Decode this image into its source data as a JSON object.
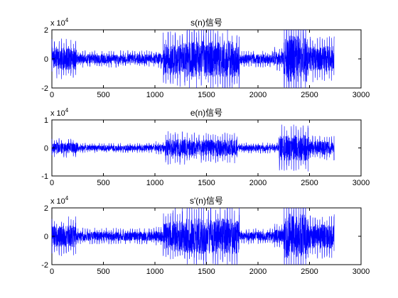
{
  "chart_data": [
    {
      "type": "line",
      "title": "s(n)信号",
      "exponent": {
        "base": "x 10",
        "power": "4"
      },
      "xlim": [
        0,
        3000
      ],
      "ylim": [
        -2,
        2
      ],
      "xticks": [
        0,
        500,
        1000,
        1500,
        2000,
        2500,
        3000
      ],
      "yticks": [
        -2,
        0,
        2
      ],
      "grid": false,
      "color": "#0000ff",
      "n_samples": 2740,
      "bursts": [
        {
          "from": 0,
          "to": 240,
          "peak": 0.7
        },
        {
          "from": 240,
          "to": 1000,
          "peak": 0.3
        },
        {
          "from": 1000,
          "to": 1080,
          "peak": 0.35
        },
        {
          "from": 1080,
          "to": 1300,
          "peak": 1.0
        },
        {
          "from": 1300,
          "to": 1820,
          "peak": 1.15
        },
        {
          "from": 1820,
          "to": 2150,
          "peak": 0.3
        },
        {
          "from": 2150,
          "to": 2250,
          "peak": 0.45
        },
        {
          "from": 2250,
          "to": 2480,
          "peak": 1.45
        },
        {
          "from": 2480,
          "to": 2740,
          "peak": 0.8
        }
      ]
    },
    {
      "type": "line",
      "title": "e(n)信号",
      "exponent": {
        "base": "x 10",
        "power": "4"
      },
      "xlim": [
        0,
        3000
      ],
      "ylim": [
        -1,
        1
      ],
      "xticks": [
        0,
        500,
        1000,
        1500,
        2000,
        2500,
        3000
      ],
      "yticks": [
        -1,
        0,
        1
      ],
      "grid": false,
      "color": "#0000ff",
      "n_samples": 2740,
      "bursts": [
        {
          "from": 0,
          "to": 250,
          "peak": 0.35
        },
        {
          "from": 250,
          "to": 1000,
          "peak": 0.18
        },
        {
          "from": 1000,
          "to": 1100,
          "peak": 0.25
        },
        {
          "from": 1100,
          "to": 1300,
          "peak": 0.6
        },
        {
          "from": 1300,
          "to": 1800,
          "peak": 0.55
        },
        {
          "from": 1800,
          "to": 2200,
          "peak": 0.2
        },
        {
          "from": 2200,
          "to": 2500,
          "peak": 0.85
        },
        {
          "from": 2500,
          "to": 2740,
          "peak": 0.45
        }
      ]
    },
    {
      "type": "line",
      "title": "s'(n)信号",
      "exponent": {
        "base": "x 10",
        "power": "4"
      },
      "xlim": [
        0,
        3000
      ],
      "ylim": [
        -2,
        2
      ],
      "xticks": [
        0,
        500,
        1000,
        1500,
        2000,
        2500,
        3000
      ],
      "yticks": [
        -2,
        0,
        2
      ],
      "grid": false,
      "color": "#0000ff",
      "n_samples": 2740,
      "bursts": [
        {
          "from": 0,
          "to": 240,
          "peak": 0.7
        },
        {
          "from": 240,
          "to": 1000,
          "peak": 0.3
        },
        {
          "from": 1000,
          "to": 1080,
          "peak": 0.35
        },
        {
          "from": 1080,
          "to": 1300,
          "peak": 1.0
        },
        {
          "from": 1300,
          "to": 1820,
          "peak": 1.15
        },
        {
          "from": 1820,
          "to": 2150,
          "peak": 0.3
        },
        {
          "from": 2150,
          "to": 2250,
          "peak": 0.45
        },
        {
          "from": 2250,
          "to": 2480,
          "peak": 1.45
        },
        {
          "from": 2480,
          "to": 2740,
          "peak": 0.8
        }
      ]
    }
  ]
}
